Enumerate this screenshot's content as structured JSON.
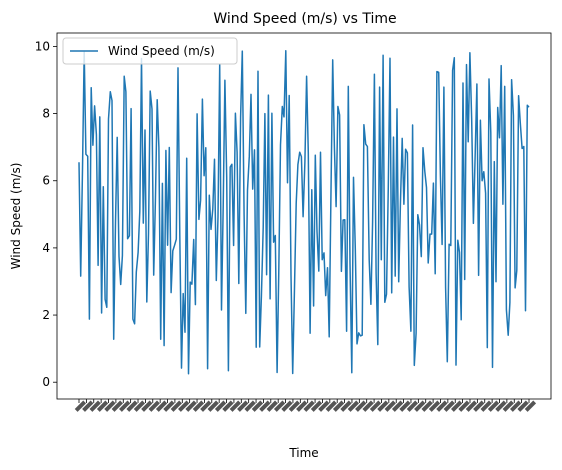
{
  "chart_data": {
    "type": "line",
    "title": "Wind Speed (m/s) vs Time",
    "xlabel": "Time",
    "ylabel": "Wind Speed (m/s)",
    "ylim": [
      -0.5,
      10.4
    ],
    "yticks": [
      0,
      2,
      4,
      6,
      8,
      10
    ],
    "legend": {
      "placement": "upper-left",
      "entries": [
        "Wind Speed (m/s)"
      ]
    },
    "grid": false,
    "series": [
      {
        "name": "Wind Speed (m/s)",
        "color": "#1f77b4",
        "x": [],
        "y": []
      }
    ],
    "xtick_count": 62,
    "xtick_label_style": "rotated-45-overlapping"
  }
}
